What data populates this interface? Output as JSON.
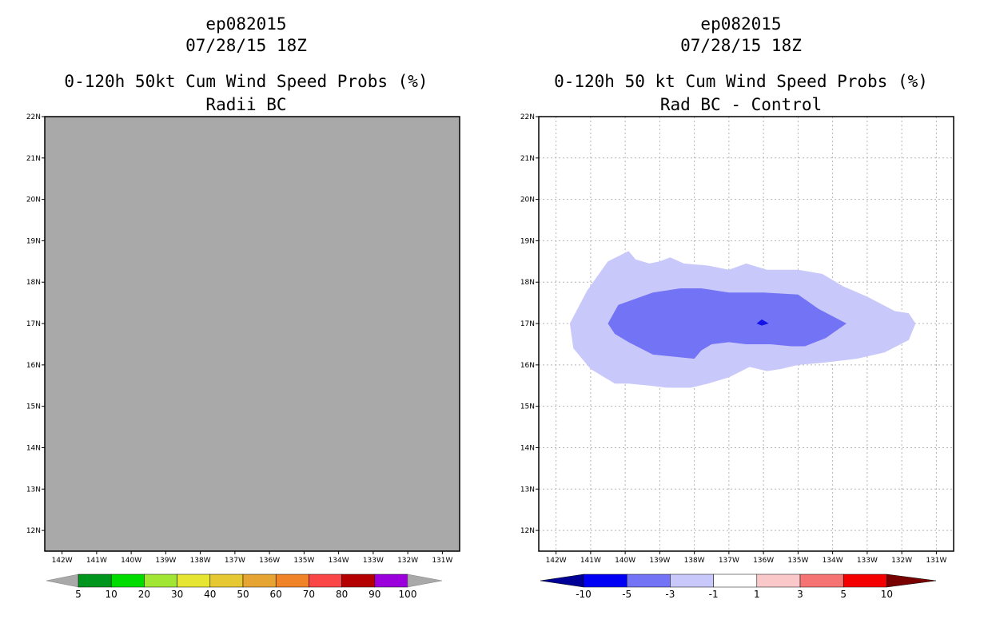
{
  "left_panel": {
    "storm": "ep082015",
    "datetime": "07/28/15 18Z",
    "title": "0-120h 50kt Cum Wind Speed Probs (%)",
    "subtitle": "Radii BC",
    "fill_color": "#a9a9a9",
    "colorbar": {
      "colors": [
        "#a9a9a9",
        "#00961e",
        "#00dc00",
        "#a0e632",
        "#e6e632",
        "#e6c832",
        "#e6a532",
        "#f08228",
        "#fa4646",
        "#b40000",
        "#9b00dc",
        "#a9a9a9"
      ],
      "labels": [
        "5",
        "10",
        "20",
        "30",
        "40",
        "50",
        "60",
        "70",
        "80",
        "90",
        "100"
      ]
    }
  },
  "right_panel": {
    "storm": "ep082015",
    "datetime": "07/28/15 18Z",
    "title": "0-120h 50 kt Cum Wind Speed Probs (%)",
    "subtitle": "Rad BC - Control",
    "contour_colors": {
      "-5_to_-3": "#7373f5",
      "-3_to_-1": "#c8c8fa",
      "-10_to_-5": "#1414e6"
    },
    "colorbar": {
      "colors": [
        "#000096",
        "#0000f5",
        "#7373f5",
        "#c8c8fa",
        "#ffffff",
        "#fac8c8",
        "#f57373",
        "#f50000",
        "#780000"
      ],
      "labels": [
        "-10",
        "-5",
        "-3",
        "-1",
        "1",
        "3",
        "5",
        "10"
      ]
    }
  },
  "axes": {
    "lat_labels": [
      "22N",
      "21N",
      "20N",
      "19N",
      "18N",
      "17N",
      "16N",
      "15N",
      "14N",
      "13N",
      "12N"
    ],
    "lon_labels": [
      "142W",
      "141W",
      "140W",
      "139W",
      "138W",
      "137W",
      "136W",
      "135W",
      "134W",
      "133W",
      "132W",
      "131W"
    ]
  },
  "chart_data": [
    {
      "type": "heatmap",
      "title": "0-120h 50kt Cum Wind Speed Probs (%)",
      "subtitle": "Radii BC",
      "lat_range": [
        11.5,
        22
      ],
      "lon_range": [
        -142.5,
        -130.5
      ],
      "field": "uniform below 5%"
    },
    {
      "type": "heatmap",
      "title": "0-120h 50 kt Cum Wind Speed Probs (%)",
      "subtitle": "Rad BC - Control",
      "lat_range": [
        11.5,
        22
      ],
      "lon_range": [
        -142.5,
        -130.5
      ],
      "contours": [
        {
          "range": "-3 to -1",
          "polygon": [
            [
              -141.6,
              17.0
            ],
            [
              -141.1,
              17.8
            ],
            [
              -140.5,
              18.5
            ],
            [
              -139.9,
              18.75
            ],
            [
              -139.7,
              18.55
            ],
            [
              -139.3,
              18.45
            ],
            [
              -139.0,
              18.5
            ],
            [
              -138.7,
              18.6
            ],
            [
              -138.3,
              18.45
            ],
            [
              -137.6,
              18.4
            ],
            [
              -137.0,
              18.3
            ],
            [
              -136.5,
              18.45
            ],
            [
              -135.9,
              18.3
            ],
            [
              -135.0,
              18.3
            ],
            [
              -134.3,
              18.2
            ],
            [
              -133.7,
              17.9
            ],
            [
              -133.0,
              17.65
            ],
            [
              -132.2,
              17.3
            ],
            [
              -131.8,
              17.25
            ],
            [
              -131.6,
              17.0
            ],
            [
              -131.8,
              16.6
            ],
            [
              -132.5,
              16.3
            ],
            [
              -133.3,
              16.15
            ],
            [
              -134.3,
              16.05
            ],
            [
              -135.0,
              16.0
            ],
            [
              -135.5,
              15.9
            ],
            [
              -135.9,
              15.85
            ],
            [
              -136.4,
              15.95
            ],
            [
              -137.0,
              15.7
            ],
            [
              -137.6,
              15.55
            ],
            [
              -138.1,
              15.45
            ],
            [
              -138.8,
              15.45
            ],
            [
              -139.3,
              15.5
            ],
            [
              -139.9,
              15.55
            ],
            [
              -140.3,
              15.55
            ],
            [
              -141.0,
              15.9
            ],
            [
              -141.5,
              16.4
            ]
          ]
        },
        {
          "range": "-5 to -3",
          "polygon": [
            [
              -140.5,
              17.0
            ],
            [
              -140.2,
              17.45
            ],
            [
              -139.2,
              17.75
            ],
            [
              -138.4,
              17.85
            ],
            [
              -137.8,
              17.85
            ],
            [
              -137.0,
              17.75
            ],
            [
              -136.0,
              17.75
            ],
            [
              -135.0,
              17.7
            ],
            [
              -134.4,
              17.35
            ],
            [
              -133.6,
              17.0
            ],
            [
              -134.2,
              16.65
            ],
            [
              -134.8,
              16.45
            ],
            [
              -135.2,
              16.45
            ],
            [
              -135.8,
              16.5
            ],
            [
              -136.5,
              16.5
            ],
            [
              -137.0,
              16.55
            ],
            [
              -137.5,
              16.5
            ],
            [
              -137.8,
              16.35
            ],
            [
              -138.0,
              16.15
            ],
            [
              -138.6,
              16.2
            ],
            [
              -139.2,
              16.25
            ],
            [
              -139.9,
              16.55
            ],
            [
              -140.3,
              16.75
            ]
          ]
        },
        {
          "range": "-10 to -5",
          "polygon": [
            [
              -136.2,
              17.0
            ],
            [
              -136.05,
              17.1
            ],
            [
              -135.85,
              17.0
            ],
            [
              -136.05,
              16.95
            ]
          ]
        }
      ]
    }
  ]
}
